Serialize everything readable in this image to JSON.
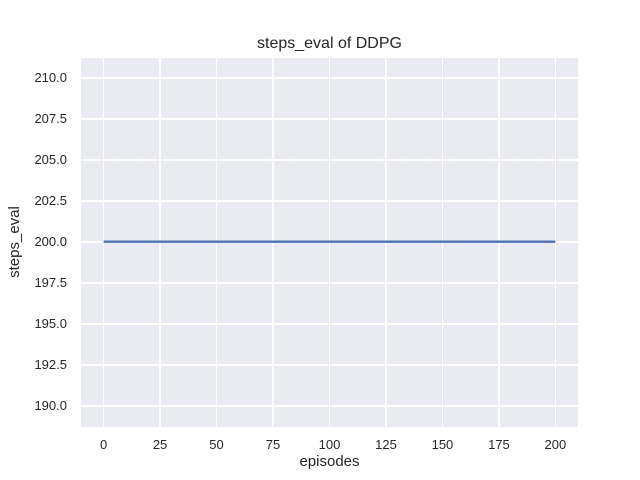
{
  "chart_data": {
    "type": "line",
    "title": "steps_eval of DDPG",
    "xlabel": "episodes",
    "ylabel": "steps_eval",
    "style": "seaborn-darkgrid",
    "grid": true,
    "legend_position": "none",
    "xlim": [
      -10,
      210
    ],
    "ylim": [
      188.7,
      211.2
    ],
    "xticks": [
      0,
      25,
      50,
      75,
      100,
      125,
      150,
      175,
      200
    ],
    "xtick_labels": [
      "0",
      "25",
      "50",
      "75",
      "100",
      "125",
      "150",
      "175",
      "200"
    ],
    "yticks": [
      190.0,
      192.5,
      195.0,
      197.5,
      200.0,
      202.5,
      205.0,
      207.5,
      210.0
    ],
    "ytick_labels": [
      "190.0",
      "192.5",
      "195.0",
      "197.5",
      "200.0",
      "202.5",
      "205.0",
      "207.5",
      "210.0"
    ],
    "series": [
      {
        "name": "DDPG",
        "color": "#4c72b0",
        "x": [
          0,
          200
        ],
        "y": [
          200,
          200
        ]
      }
    ],
    "colors": {
      "figure_background": "#ffffff",
      "axes_background": "#eaeaf2",
      "gridline": "#ffffff",
      "text": "#262626",
      "line": "#4c72b0"
    }
  }
}
